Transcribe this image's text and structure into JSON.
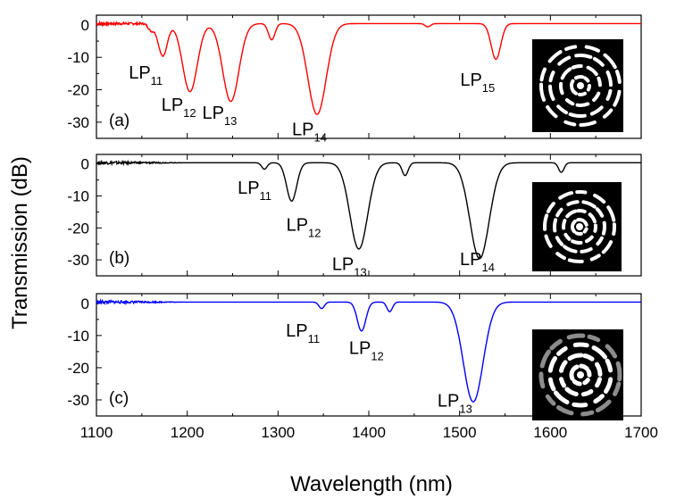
{
  "chart_data": {
    "type": "line",
    "xlabel": "Wavelength (nm)",
    "ylabel": "Transmission (dB)",
    "xlim": [
      1100,
      1700
    ],
    "ylim": [
      -35,
      3
    ],
    "x_ticks": [
      "1100",
      "1200",
      "1300",
      "1400",
      "1500",
      "1600",
      "1700"
    ],
    "y_ticks": [
      "0",
      "-10",
      "-20",
      "-30"
    ],
    "panels": [
      {
        "label": "(a)",
        "color": "#ff0000",
        "inset": "mode-pattern-image",
        "dips": [
          {
            "x": 1173,
            "y": -10,
            "mode": "LP",
            "sub": "11"
          },
          {
            "x": 1203,
            "y": -21,
            "mode": "LP",
            "sub": "12"
          },
          {
            "x": 1248,
            "y": -24,
            "mode": "LP",
            "sub": "13"
          },
          {
            "x": 1343,
            "y": -28,
            "mode": "LP",
            "sub": "14"
          },
          {
            "x": 1540,
            "y": -11,
            "mode": "LP",
            "sub": "15"
          }
        ],
        "minor_dips": [
          {
            "x": 1160,
            "y": -2
          },
          {
            "x": 1293,
            "y": -5
          },
          {
            "x": 1465,
            "y": -1
          }
        ]
      },
      {
        "label": "(b)",
        "color": "#000000",
        "inset": "mode-pattern-image",
        "dips": [
          {
            "x": 1285,
            "y": -2,
            "mode": "LP",
            "sub": "11"
          },
          {
            "x": 1315,
            "y": -12,
            "mode": "LP",
            "sub": "12"
          },
          {
            "x": 1389,
            "y": -27,
            "mode": "LP",
            "sub": "13"
          },
          {
            "x": 1522,
            "y": -30,
            "mode": "LP",
            "sub": "14"
          }
        ],
        "minor_dips": [
          {
            "x": 1440,
            "y": -4
          },
          {
            "x": 1612,
            "y": -3
          }
        ]
      },
      {
        "label": "(c)",
        "color": "#0000ff",
        "inset": "mode-pattern-image",
        "dips": [
          {
            "x": 1348,
            "y": -2,
            "mode": "LP",
            "sub": "11"
          },
          {
            "x": 1392,
            "y": -9,
            "mode": "LP",
            "sub": "12"
          },
          {
            "x": 1515,
            "y": -31,
            "mode": "LP",
            "sub": "13"
          }
        ],
        "minor_dips": [
          {
            "x": 1423,
            "y": -3
          }
        ]
      }
    ]
  }
}
